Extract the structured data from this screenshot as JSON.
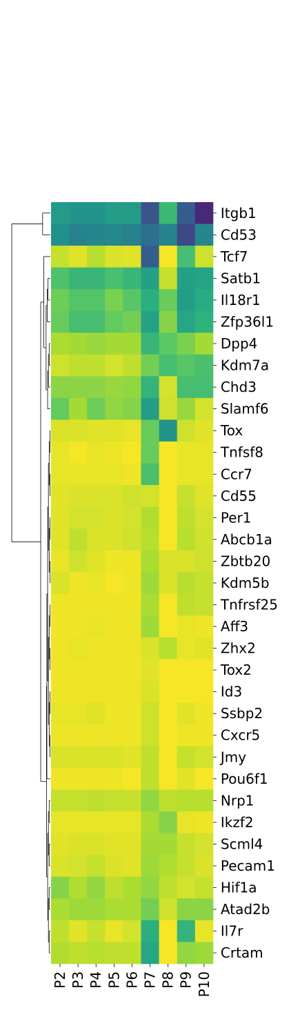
{
  "chart_data": {
    "type": "heatmap",
    "columns": [
      "P2",
      "P3",
      "P4",
      "P5",
      "P6",
      "P7",
      "P8",
      "P9",
      "P10"
    ],
    "rows": [
      "Itgb1",
      "Cd53",
      "Tcf7",
      "Satb1",
      "Il18r1",
      "Zfp36l1",
      "Dpp4",
      "Kdm7a",
      "Chd3",
      "Slamf6",
      "Tox",
      "Tnfsf8",
      "Ccr7",
      "Cd55",
      "Per1",
      "Abcb1a",
      "Zbtb20",
      "Kdm5b",
      "Tnfrsf25",
      "Aff3",
      "Zhx2",
      "Tox2",
      "Id3",
      "Ssbp2",
      "Cxcr5",
      "Jmy",
      "Pou6f1",
      "Nrp1",
      "Ikzf2",
      "Scml4",
      "Pecam1",
      "Hif1a",
      "Atad2b",
      "Il7r",
      "Crtam"
    ],
    "colormap": "viridis",
    "value_range": [
      0,
      1
    ],
    "values": [
      [
        0.55,
        0.52,
        0.52,
        0.56,
        0.55,
        0.27,
        0.68,
        0.3,
        0.12
      ],
      [
        0.5,
        0.45,
        0.46,
        0.47,
        0.45,
        0.37,
        0.45,
        0.22,
        0.46
      ],
      [
        0.92,
        0.96,
        0.9,
        0.95,
        0.96,
        0.3,
        0.99,
        0.7,
        0.93
      ],
      [
        0.72,
        0.67,
        0.67,
        0.71,
        0.67,
        0.57,
        0.92,
        0.57,
        0.59
      ],
      [
        0.78,
        0.73,
        0.73,
        0.8,
        0.74,
        0.64,
        0.77,
        0.56,
        0.63
      ],
      [
        0.77,
        0.7,
        0.7,
        0.76,
        0.79,
        0.58,
        0.82,
        0.6,
        0.65
      ],
      [
        0.88,
        0.87,
        0.85,
        0.87,
        0.87,
        0.67,
        0.75,
        0.8,
        0.87
      ],
      [
        0.93,
        0.91,
        0.91,
        0.94,
        0.91,
        0.79,
        0.7,
        0.74,
        0.71
      ],
      [
        0.83,
        0.83,
        0.83,
        0.85,
        0.84,
        0.66,
        0.94,
        0.7,
        0.7
      ],
      [
        0.76,
        0.87,
        0.78,
        0.84,
        0.82,
        0.56,
        0.93,
        0.85,
        0.94
      ],
      [
        0.95,
        0.95,
        0.96,
        0.96,
        0.97,
        0.77,
        0.52,
        0.93,
        0.96
      ],
      [
        0.97,
        0.99,
        0.97,
        0.98,
        0.99,
        0.77,
        0.99,
        0.97,
        0.97
      ],
      [
        0.97,
        0.97,
        0.97,
        0.97,
        0.98,
        0.71,
        0.99,
        0.97,
        0.97
      ],
      [
        0.96,
        0.95,
        0.95,
        0.95,
        0.93,
        0.94,
        0.99,
        0.92,
        0.96
      ],
      [
        0.96,
        0.94,
        0.94,
        0.95,
        0.94,
        0.89,
        0.99,
        0.91,
        0.94
      ],
      [
        0.96,
        0.91,
        0.95,
        0.95,
        0.93,
        0.9,
        0.99,
        0.9,
        0.93
      ],
      [
        0.97,
        0.93,
        0.96,
        0.98,
        0.98,
        0.88,
        0.95,
        0.95,
        0.93
      ],
      [
        0.95,
        0.98,
        0.97,
        0.99,
        0.98,
        0.86,
        0.95,
        0.9,
        0.92
      ],
      [
        0.98,
        0.98,
        0.98,
        0.98,
        0.98,
        0.88,
        0.99,
        0.91,
        0.92
      ],
      [
        0.98,
        0.98,
        0.97,
        0.98,
        0.98,
        0.86,
        0.99,
        0.97,
        0.98
      ],
      [
        0.98,
        0.97,
        0.98,
        0.98,
        0.98,
        0.95,
        0.9,
        0.97,
        0.96
      ],
      [
        0.98,
        0.98,
        0.98,
        0.98,
        0.98,
        0.96,
        0.99,
        0.99,
        0.99
      ],
      [
        0.98,
        0.98,
        0.98,
        0.98,
        0.98,
        0.95,
        0.99,
        0.99,
        0.99
      ],
      [
        0.97,
        0.97,
        0.96,
        0.98,
        0.98,
        0.93,
        0.99,
        0.96,
        0.98
      ],
      [
        0.98,
        0.98,
        0.98,
        0.98,
        0.98,
        0.93,
        0.99,
        0.98,
        0.98
      ],
      [
        0.95,
        0.95,
        0.95,
        0.95,
        0.96,
        0.91,
        0.99,
        0.92,
        0.94
      ],
      [
        0.98,
        0.98,
        0.98,
        0.98,
        0.99,
        0.91,
        0.99,
        0.96,
        0.99
      ],
      [
        0.92,
        0.92,
        0.91,
        0.92,
        0.92,
        0.84,
        0.91,
        0.9,
        0.9
      ],
      [
        0.97,
        0.97,
        0.97,
        0.97,
        0.97,
        0.88,
        0.82,
        0.97,
        0.98
      ],
      [
        0.96,
        0.95,
        0.95,
        0.96,
        0.96,
        0.87,
        0.87,
        0.92,
        0.94
      ],
      [
        0.95,
        0.94,
        0.92,
        0.95,
        0.96,
        0.86,
        0.89,
        0.92,
        0.95
      ],
      [
        0.82,
        0.89,
        0.84,
        0.91,
        0.88,
        0.84,
        0.91,
        0.94,
        0.92
      ],
      [
        0.88,
        0.86,
        0.86,
        0.88,
        0.88,
        0.79,
        0.93,
        0.83,
        0.83
      ],
      [
        0.91,
        0.96,
        0.92,
        0.97,
        0.94,
        0.64,
        0.99,
        0.66,
        0.97
      ],
      [
        0.89,
        0.91,
        0.9,
        0.91,
        0.91,
        0.6,
        0.99,
        0.84,
        0.86
      ]
    ]
  }
}
